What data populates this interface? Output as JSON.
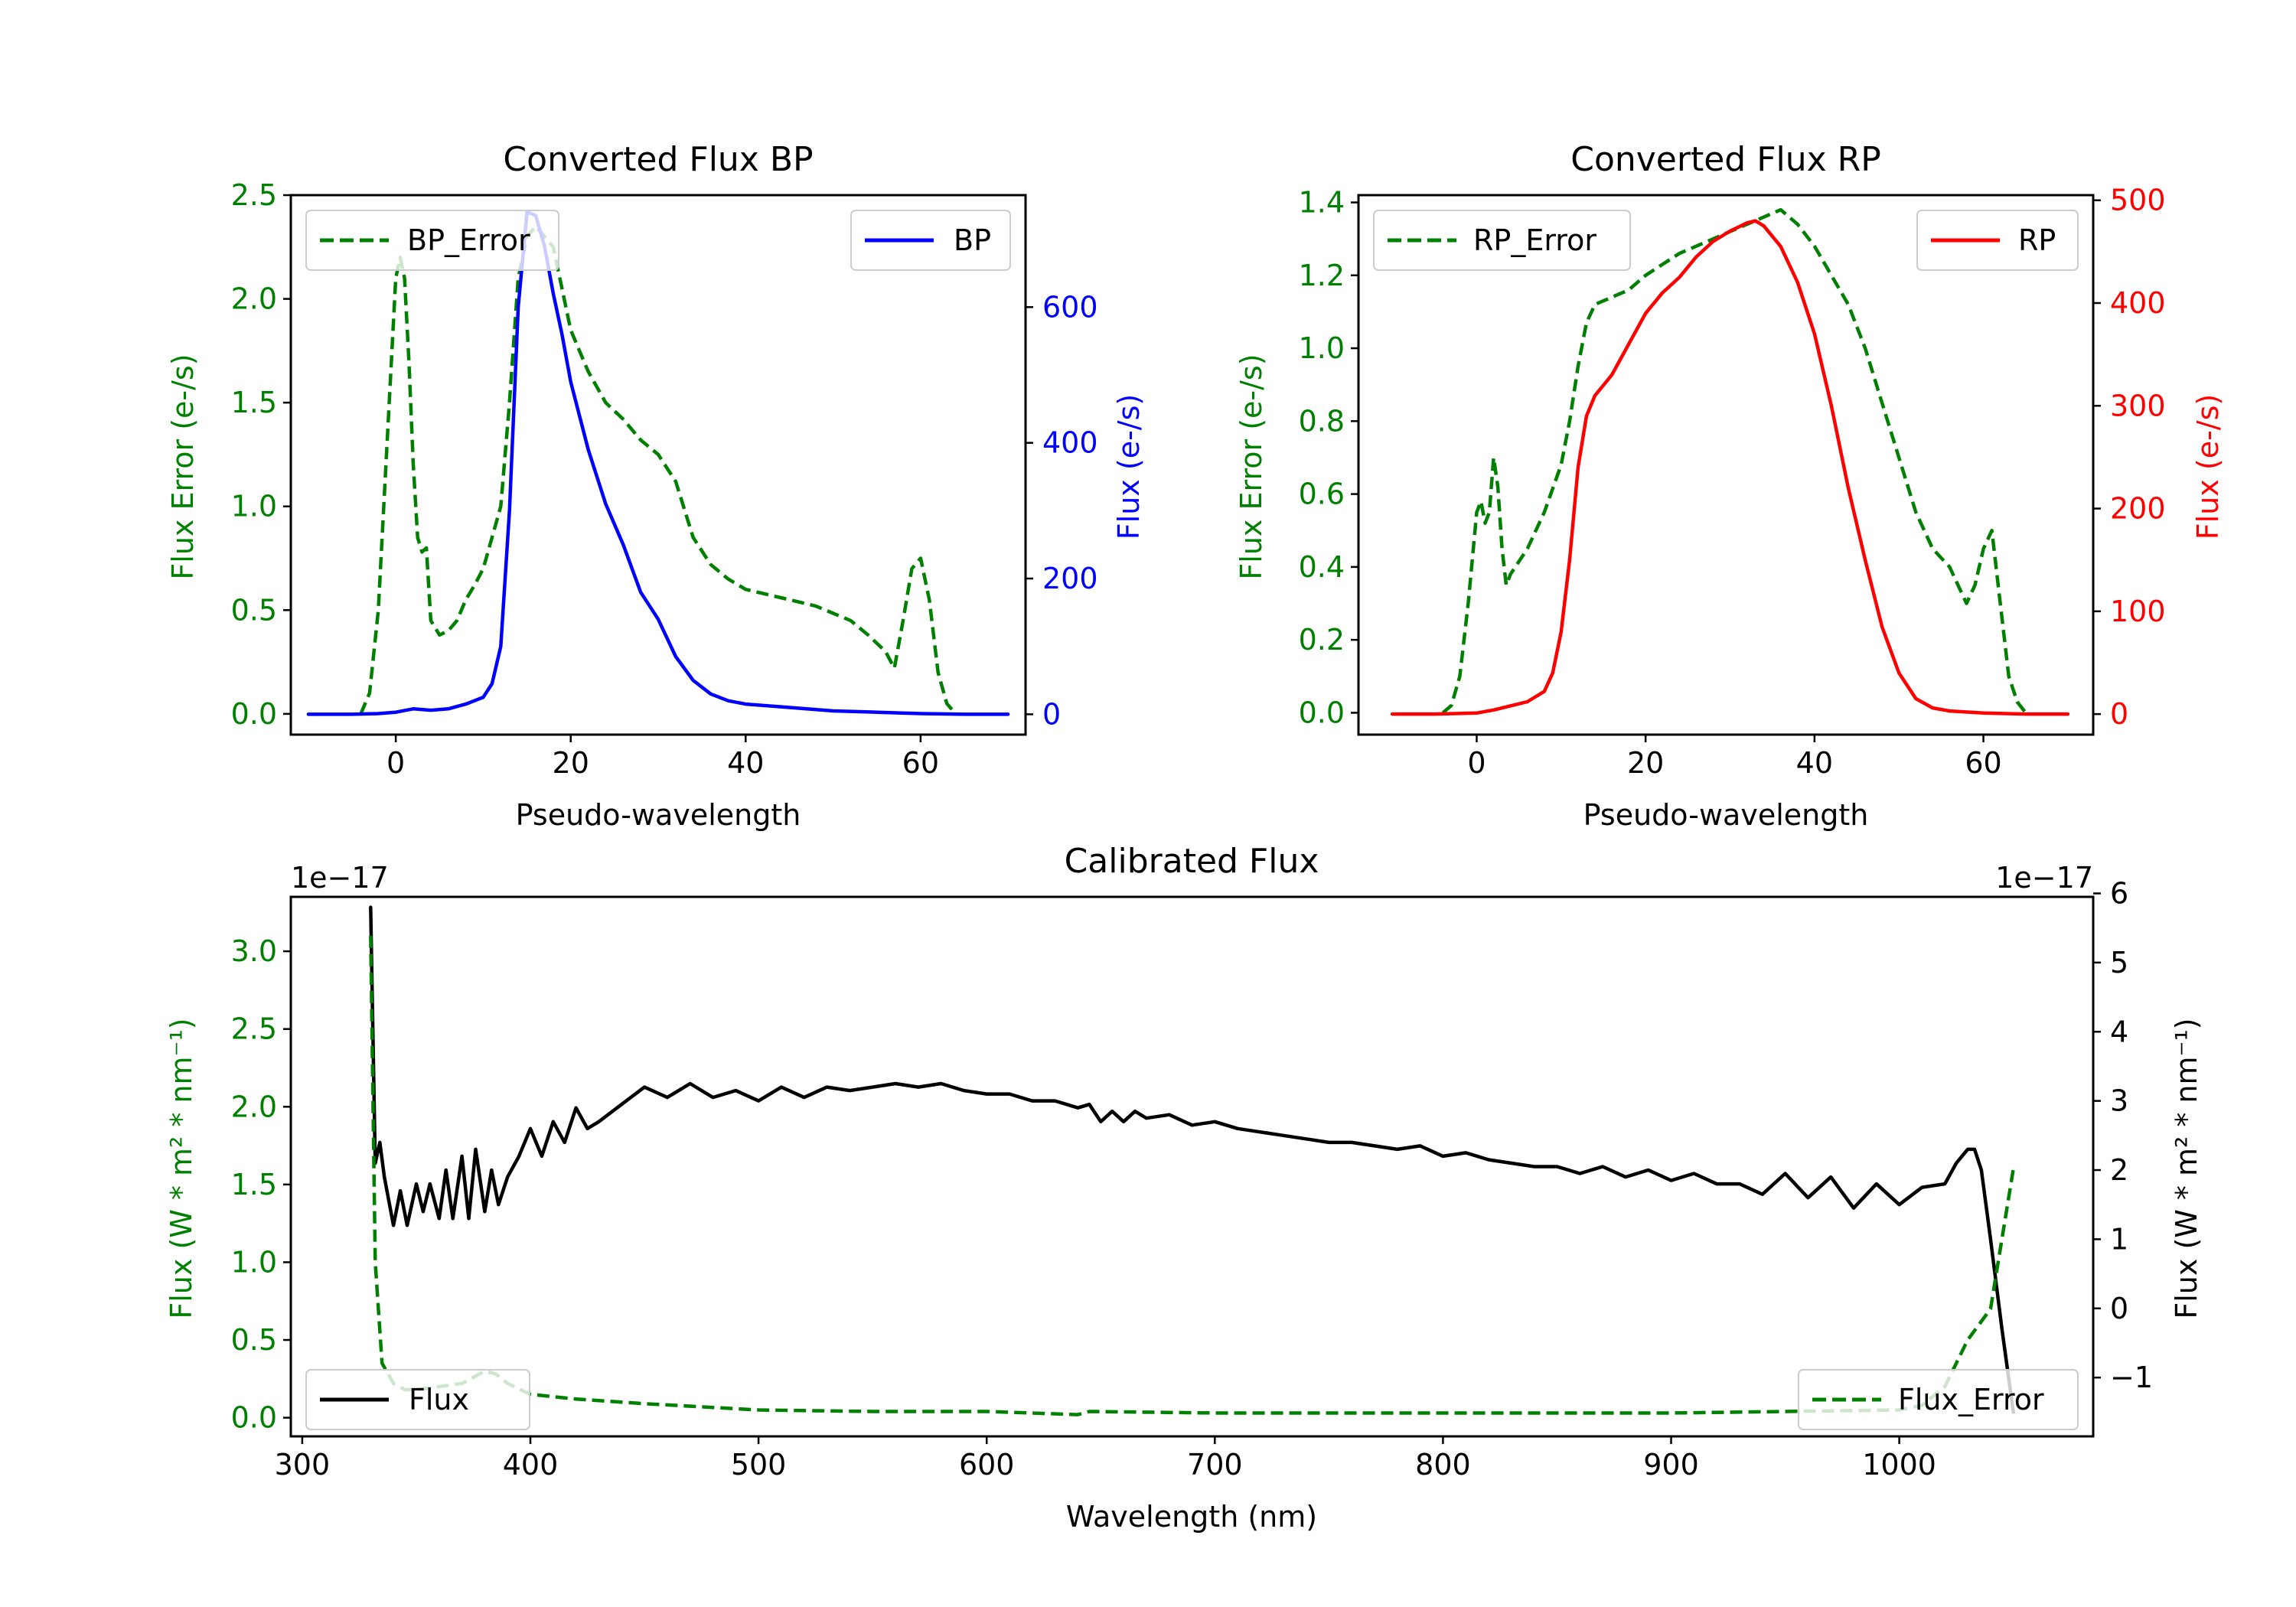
{
  "chart_data": [
    {
      "id": "bp",
      "type": "line",
      "title": "Converted Flux BP",
      "xlabel": "Pseudo-wavelength",
      "ylabel_left": "Flux Error (e-/s)",
      "ylabel_right": "Flux (e-/s)",
      "xlim": [
        -12,
        72
      ],
      "ylim_left": [
        -0.1,
        2.5
      ],
      "ylim_right": [
        -30,
        765
      ],
      "xticks": [
        0,
        20,
        40,
        60
      ],
      "yticks_left": [
        0.0,
        0.5,
        1.0,
        1.5,
        2.0,
        2.5
      ],
      "yticks_left_labels": [
        "0.0",
        "0.5",
        "1.0",
        "1.5",
        "2.0",
        "2.5"
      ],
      "yticks_right": [
        0,
        200,
        400,
        600
      ],
      "series": [
        {
          "name": "BP_Error",
          "axis": "left",
          "color": "#008000",
          "style": "dashed",
          "legend": "top-left",
          "x": [
            -4,
            -3,
            -2,
            -1,
            0,
            0.5,
            1,
            1.5,
            2,
            2.5,
            3,
            3.5,
            4,
            5,
            6,
            7,
            8,
            9,
            10,
            11,
            12,
            13,
            14,
            15,
            16,
            17,
            18,
            19,
            20,
            21,
            22,
            24,
            26,
            28,
            30,
            32,
            34,
            36,
            38,
            40,
            44,
            48,
            52,
            54,
            56,
            57,
            58,
            59,
            60,
            61,
            62,
            63,
            64
          ],
          "values": [
            0.0,
            0.1,
            0.5,
            1.3,
            2.1,
            2.2,
            2.1,
            1.7,
            1.2,
            0.85,
            0.78,
            0.8,
            0.45,
            0.38,
            0.4,
            0.45,
            0.55,
            0.62,
            0.7,
            0.85,
            1.0,
            1.5,
            2.1,
            2.3,
            2.35,
            2.3,
            2.25,
            2.05,
            1.85,
            1.75,
            1.65,
            1.5,
            1.42,
            1.32,
            1.25,
            1.12,
            0.85,
            0.72,
            0.65,
            0.6,
            0.56,
            0.52,
            0.45,
            0.38,
            0.3,
            0.22,
            0.45,
            0.7,
            0.75,
            0.55,
            0.2,
            0.05,
            0.0
          ]
        },
        {
          "name": "BP",
          "axis": "right",
          "color": "#0000ff",
          "style": "solid",
          "legend": "top-right",
          "x": [
            -10,
            -5,
            -2,
            0,
            2,
            4,
            6,
            8,
            10,
            11,
            12,
            13,
            14,
            15,
            16,
            17,
            18,
            19,
            20,
            22,
            24,
            26,
            28,
            30,
            32,
            34,
            36,
            38,
            40,
            45,
            50,
            55,
            60,
            65,
            70
          ],
          "values": [
            0,
            0,
            1,
            3,
            8,
            6,
            8,
            15,
            25,
            45,
            100,
            300,
            600,
            740,
            735,
            690,
            620,
            560,
            490,
            390,
            310,
            250,
            180,
            140,
            85,
            50,
            30,
            20,
            15,
            10,
            5,
            3,
            1,
            0,
            0
          ]
        }
      ]
    },
    {
      "id": "rp",
      "type": "line",
      "title": "Converted Flux RP",
      "xlabel": "Pseudo-wavelength",
      "ylabel_left": "Flux Error (e-/s)",
      "ylabel_right": "Flux (e-/s)",
      "xlim": [
        -14,
        73
      ],
      "ylim_left": [
        -0.06,
        1.42
      ],
      "ylim_right": [
        -20,
        505
      ],
      "xticks": [
        0,
        20,
        40,
        60
      ],
      "yticks_left": [
        0.0,
        0.2,
        0.4,
        0.6,
        0.8,
        1.0,
        1.2,
        1.4
      ],
      "yticks_left_labels": [
        "0.0",
        "0.2",
        "0.4",
        "0.6",
        "0.8",
        "1.0",
        "1.2",
        "1.4"
      ],
      "yticks_right": [
        0,
        100,
        200,
        300,
        400,
        500
      ],
      "series": [
        {
          "name": "RP_Error",
          "axis": "left",
          "color": "#008000",
          "style": "dashed",
          "legend": "top-left",
          "x": [
            -4,
            -3,
            -2,
            -1,
            0,
            0.5,
            1,
            1.5,
            2,
            2.5,
            3,
            3.5,
            4,
            6,
            8,
            10,
            11,
            12,
            13,
            14,
            16,
            18,
            20,
            24,
            28,
            30,
            32,
            34,
            36,
            38,
            40,
            42,
            44,
            46,
            48,
            50,
            52,
            54,
            56,
            57,
            58,
            59,
            60,
            61,
            62,
            63,
            64,
            65
          ],
          "values": [
            0.0,
            0.02,
            0.1,
            0.3,
            0.55,
            0.58,
            0.52,
            0.55,
            0.7,
            0.62,
            0.45,
            0.35,
            0.38,
            0.45,
            0.55,
            0.68,
            0.8,
            0.95,
            1.07,
            1.12,
            1.14,
            1.16,
            1.2,
            1.26,
            1.3,
            1.32,
            1.34,
            1.36,
            1.38,
            1.34,
            1.28,
            1.2,
            1.12,
            1.0,
            0.85,
            0.7,
            0.55,
            0.45,
            0.4,
            0.35,
            0.3,
            0.35,
            0.45,
            0.5,
            0.3,
            0.1,
            0.03,
            0.0
          ]
        },
        {
          "name": "RP",
          "axis": "right",
          "color": "#ff0000",
          "style": "solid",
          "legend": "top-right",
          "x": [
            -10,
            -5,
            0,
            2,
            4,
            6,
            8,
            9,
            10,
            11,
            12,
            13,
            14,
            16,
            18,
            20,
            22,
            24,
            26,
            28,
            30,
            32,
            33,
            34,
            36,
            38,
            40,
            42,
            44,
            46,
            48,
            50,
            52,
            54,
            56,
            60,
            65,
            70
          ],
          "values": [
            0,
            0,
            1,
            4,
            8,
            12,
            22,
            40,
            80,
            150,
            240,
            290,
            310,
            330,
            360,
            390,
            410,
            425,
            445,
            460,
            470,
            478,
            480,
            475,
            455,
            420,
            370,
            300,
            220,
            150,
            85,
            40,
            15,
            6,
            3,
            1,
            0,
            0
          ]
        }
      ]
    },
    {
      "id": "cal",
      "type": "line",
      "title": "Calibrated Flux",
      "xlabel": "Wavelength (nm)",
      "ylabel_left": "Flux (W * m² * nm⁻¹)",
      "ylabel_right": "Flux (W * m² * nm⁻¹)",
      "offset_left": "1e−17",
      "offset_right": "1e−17",
      "xlim": [
        295,
        1085
      ],
      "ylim_left": [
        -0.12,
        3.35
      ],
      "ylim_right": [
        -1.85,
        5.95
      ],
      "xticks": [
        300,
        400,
        500,
        600,
        700,
        800,
        900,
        1000
      ],
      "yticks_left": [
        0.0,
        0.5,
        1.0,
        1.5,
        2.0,
        2.5,
        3.0
      ],
      "yticks_left_labels": [
        "0.0",
        "0.5",
        "1.0",
        "1.5",
        "2.0",
        "2.5",
        "3.0"
      ],
      "yticks_right": [
        -1,
        0,
        1,
        2,
        3,
        4,
        5,
        6
      ],
      "yticks_right_labels": [
        "−1",
        "0",
        "1",
        "2",
        "3",
        "4",
        "5",
        "6"
      ],
      "series": [
        {
          "name": "Flux",
          "axis": "right",
          "color": "#000000",
          "style": "solid",
          "legend": "bottom-left",
          "x": [
            330,
            332,
            334,
            336,
            340,
            343,
            346,
            350,
            353,
            356,
            360,
            363,
            366,
            370,
            373,
            376,
            380,
            383,
            386,
            390,
            395,
            400,
            405,
            410,
            415,
            420,
            425,
            430,
            440,
            450,
            460,
            470,
            480,
            490,
            500,
            510,
            520,
            530,
            540,
            550,
            560,
            570,
            580,
            590,
            600,
            610,
            620,
            630,
            640,
            645,
            650,
            655,
            660,
            665,
            670,
            680,
            690,
            700,
            710,
            720,
            730,
            740,
            750,
            760,
            770,
            780,
            790,
            800,
            810,
            820,
            830,
            840,
            850,
            860,
            870,
            880,
            890,
            900,
            910,
            920,
            930,
            940,
            950,
            960,
            970,
            980,
            990,
            1000,
            1010,
            1020,
            1025,
            1030,
            1033,
            1036,
            1040,
            1045,
            1050
          ],
          "values": [
            5.8,
            2.1,
            2.4,
            1.9,
            1.2,
            1.7,
            1.2,
            1.8,
            1.4,
            1.8,
            1.3,
            2.0,
            1.3,
            2.2,
            1.3,
            2.3,
            1.4,
            2.0,
            1.5,
            1.9,
            2.2,
            2.6,
            2.2,
            2.7,
            2.4,
            2.9,
            2.6,
            2.7,
            2.95,
            3.2,
            3.05,
            3.25,
            3.05,
            3.15,
            3.0,
            3.2,
            3.05,
            3.2,
            3.15,
            3.2,
            3.25,
            3.2,
            3.25,
            3.15,
            3.1,
            3.1,
            3.0,
            3.0,
            2.9,
            2.95,
            2.7,
            2.85,
            2.7,
            2.85,
            2.75,
            2.8,
            2.65,
            2.7,
            2.6,
            2.55,
            2.5,
            2.45,
            2.4,
            2.4,
            2.35,
            2.3,
            2.35,
            2.2,
            2.25,
            2.15,
            2.1,
            2.05,
            2.05,
            1.95,
            2.05,
            1.9,
            2.0,
            1.85,
            1.95,
            1.8,
            1.8,
            1.65,
            1.95,
            1.6,
            1.9,
            1.45,
            1.8,
            1.5,
            1.75,
            1.8,
            2.1,
            2.3,
            2.3,
            2.0,
            1.0,
            -0.3,
            -1.5
          ]
        },
        {
          "name": "Flux_Error",
          "axis": "left",
          "color": "#008000",
          "style": "dashed",
          "legend": "bottom-right",
          "x": [
            330,
            332,
            335,
            340,
            345,
            350,
            360,
            370,
            380,
            385,
            390,
            400,
            420,
            450,
            500,
            550,
            600,
            640,
            645,
            700,
            800,
            900,
            1000,
            1010,
            1020,
            1030,
            1040,
            1050
          ],
          "values": [
            3.1,
            1.0,
            0.35,
            0.22,
            0.18,
            0.18,
            0.2,
            0.22,
            0.3,
            0.28,
            0.22,
            0.15,
            0.12,
            0.09,
            0.05,
            0.04,
            0.04,
            0.02,
            0.04,
            0.03,
            0.03,
            0.03,
            0.05,
            0.08,
            0.2,
            0.5,
            0.7,
            1.6
          ]
        }
      ]
    }
  ]
}
